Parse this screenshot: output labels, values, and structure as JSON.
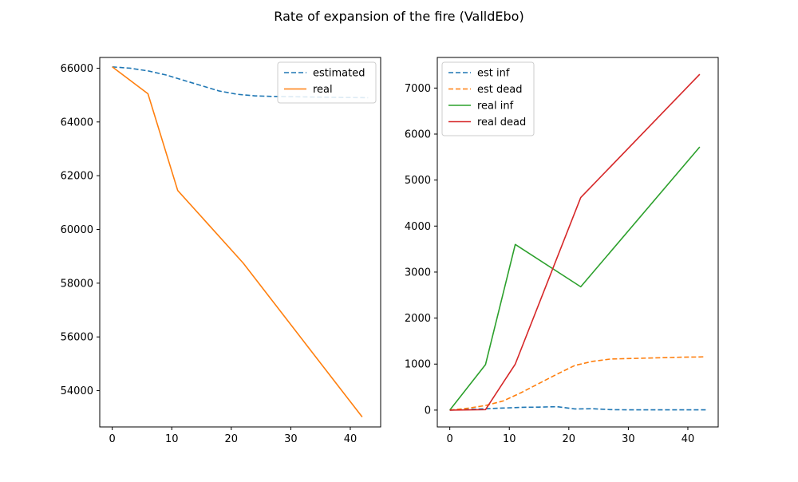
{
  "figure": {
    "title": "Rate of expansion of the fire (ValldEbo)"
  },
  "chart_data": [
    {
      "type": "line",
      "xlim": [
        -2.1,
        45.1
      ],
      "ylim": [
        52650,
        66400
      ],
      "xticks": [
        0,
        10,
        20,
        30,
        40
      ],
      "yticks": [
        54000,
        56000,
        58000,
        60000,
        62000,
        64000,
        66000
      ],
      "xlabel": "",
      "ylabel": "",
      "grid": false,
      "legend": "top-right",
      "series": [
        {
          "name": "estimated",
          "style": "dashed",
          "color": "#1f77b4",
          "x": [
            0,
            3,
            6,
            9,
            12,
            15,
            18,
            21,
            24,
            27,
            30,
            33,
            36,
            39,
            42,
            43
          ],
          "y": [
            66050,
            66000,
            65900,
            65750,
            65550,
            65350,
            65150,
            65030,
            64970,
            64950,
            64940,
            64930,
            64920,
            64910,
            64905,
            64900
          ]
        },
        {
          "name": "real",
          "style": "solid",
          "color": "#ff7f0e",
          "x": [
            0,
            6,
            11,
            22,
            42
          ],
          "y": [
            66050,
            65050,
            61450,
            58750,
            53020
          ]
        }
      ]
    },
    {
      "type": "line",
      "xlim": [
        -2.1,
        45.1
      ],
      "ylim": [
        -366,
        7665
      ],
      "xticks": [
        0,
        10,
        20,
        30,
        40
      ],
      "yticks": [
        0,
        1000,
        2000,
        3000,
        4000,
        5000,
        6000,
        7000
      ],
      "xlabel": "",
      "ylabel": "",
      "grid": false,
      "legend": "top-left",
      "series": [
        {
          "name": "est inf",
          "style": "dashed",
          "color": "#1f77b4",
          "x": [
            0,
            3,
            6,
            9,
            12,
            15,
            18,
            21,
            24,
            27,
            30,
            33,
            36,
            39,
            42,
            43
          ],
          "y": [
            0,
            15,
            30,
            45,
            60,
            65,
            75,
            25,
            30,
            10,
            5,
            5,
            5,
            5,
            5,
            5
          ]
        },
        {
          "name": "est dead",
          "style": "dashed",
          "color": "#ff7f0e",
          "x": [
            0,
            3,
            6,
            9,
            12,
            15,
            18,
            21,
            24,
            27,
            30,
            33,
            36,
            39,
            42,
            43
          ],
          "y": [
            0,
            40,
            100,
            200,
            380,
            580,
            780,
            970,
            1060,
            1110,
            1120,
            1130,
            1140,
            1150,
            1155,
            1160
          ]
        },
        {
          "name": "real inf",
          "style": "solid",
          "color": "#2ca02c",
          "x": [
            0,
            6,
            11,
            22,
            42
          ],
          "y": [
            0,
            990,
            3600,
            2680,
            5720
          ]
        },
        {
          "name": "real dead",
          "style": "solid",
          "color": "#d62728",
          "x": [
            0,
            6,
            11,
            22,
            42
          ],
          "y": [
            0,
            10,
            1000,
            4620,
            7300
          ]
        }
      ]
    }
  ]
}
